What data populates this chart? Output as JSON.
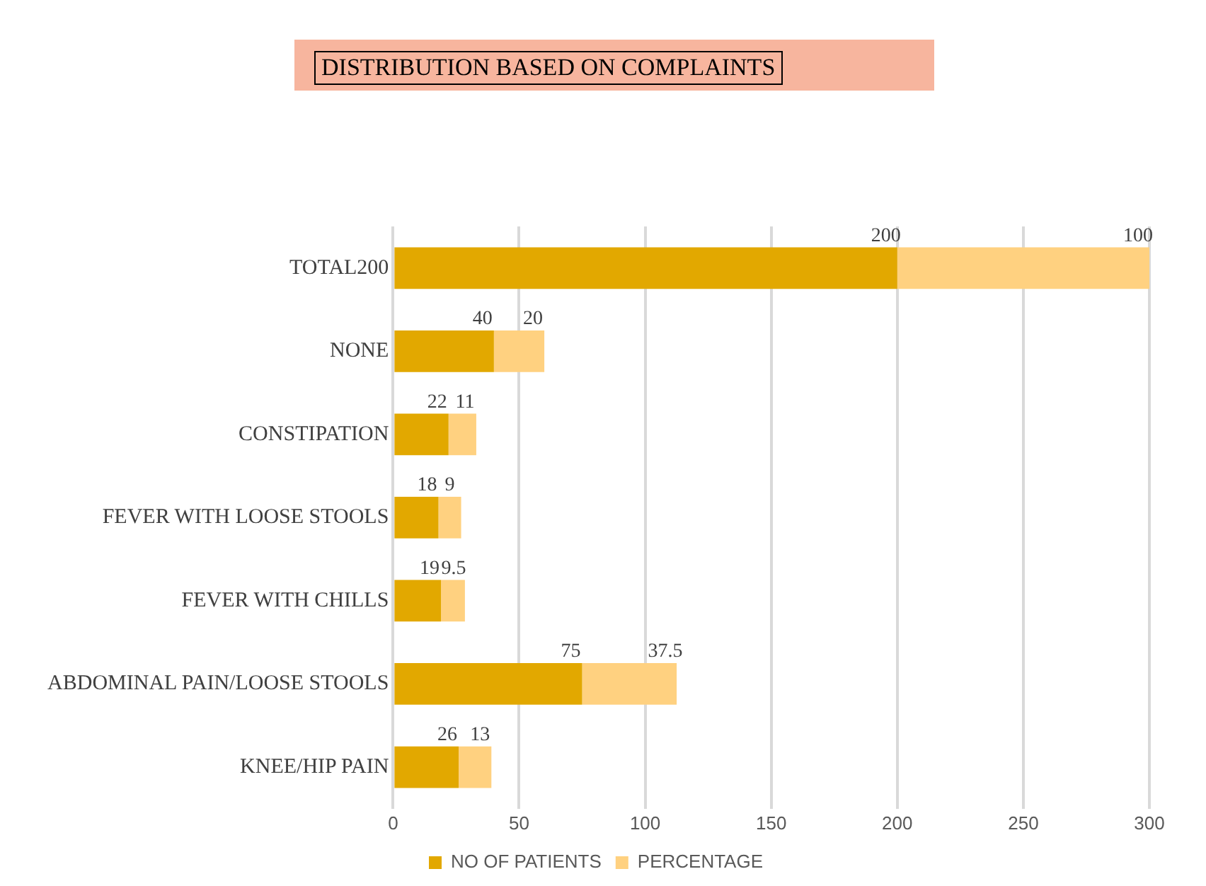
{
  "chart_data": {
    "type": "bar",
    "orientation": "horizontal",
    "stacked": true,
    "title": "DISTRIBUTION BASED ON COMPLAINTS",
    "categories": [
      "TOTAL200",
      "NONE",
      "CONSTIPATION",
      "FEVER WITH LOOSE STOOLS",
      "FEVER WITH CHILLS",
      "ABDOMINAL PAIN/LOOSE STOOLS",
      "KNEE/HIP PAIN"
    ],
    "series": [
      {
        "name": "NO OF PATIENTS",
        "color": "#e2a800",
        "values": [
          200,
          40,
          22,
          18,
          19,
          75,
          26
        ]
      },
      {
        "name": "PERCENTAGE",
        "color": "#ffd180",
        "values": [
          100,
          20,
          11,
          9,
          9.5,
          37.5,
          13
        ]
      }
    ],
    "xlim": [
      0,
      300
    ],
    "xticks": [
      0,
      50,
      100,
      150,
      200,
      250,
      300
    ],
    "grid": "x",
    "legend": "bottom",
    "data_labels": true
  }
}
